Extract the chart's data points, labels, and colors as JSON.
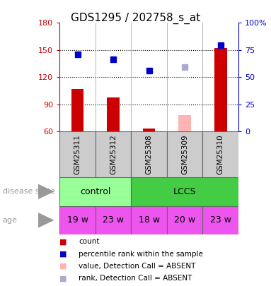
{
  "title": "GDS1295 / 202758_s_at",
  "samples": [
    "GSM25311",
    "GSM25312",
    "GSM25308",
    "GSM25309",
    "GSM25310"
  ],
  "bar_values": [
    107,
    98,
    63,
    0,
    152
  ],
  "absent_bar_values": [
    0,
    0,
    0,
    78,
    0
  ],
  "absent_bar_color": "#ffb3b3",
  "dot_values": [
    145,
    140,
    127,
    0,
    155
  ],
  "absent_dot_values": [
    0,
    0,
    0,
    131,
    0
  ],
  "absent_dot_color": "#aaaacc",
  "bar_color": "#cc0000",
  "dot_color": "#0000cc",
  "ylim_left": [
    60,
    180
  ],
  "ylim_right": [
    0,
    100
  ],
  "yticks_left": [
    60,
    90,
    120,
    150,
    180
  ],
  "yticks_right": [
    0,
    25,
    50,
    75,
    100
  ],
  "ytick_right_labels": [
    "0",
    "25",
    "50",
    "75",
    "100%"
  ],
  "disease_state": [
    "control",
    "control",
    "LCCS",
    "LCCS",
    "LCCS"
  ],
  "disease_state_colors": {
    "control": "#99ff99",
    "LCCS": "#44cc44"
  },
  "age": [
    "19 w",
    "23 w",
    "18 w",
    "20 w",
    "23 w"
  ],
  "age_color": "#ee55ee",
  "sample_box_color": "#cccccc",
  "legend_items": [
    {
      "label": "count",
      "color": "#cc0000"
    },
    {
      "label": "percentile rank within the sample",
      "color": "#0000cc"
    },
    {
      "label": "value, Detection Call = ABSENT",
      "color": "#ffb3b3"
    },
    {
      "label": "rank, Detection Call = ABSENT",
      "color": "#aaaacc"
    }
  ],
  "left_label_color": "#999999",
  "title_fontsize": 11
}
